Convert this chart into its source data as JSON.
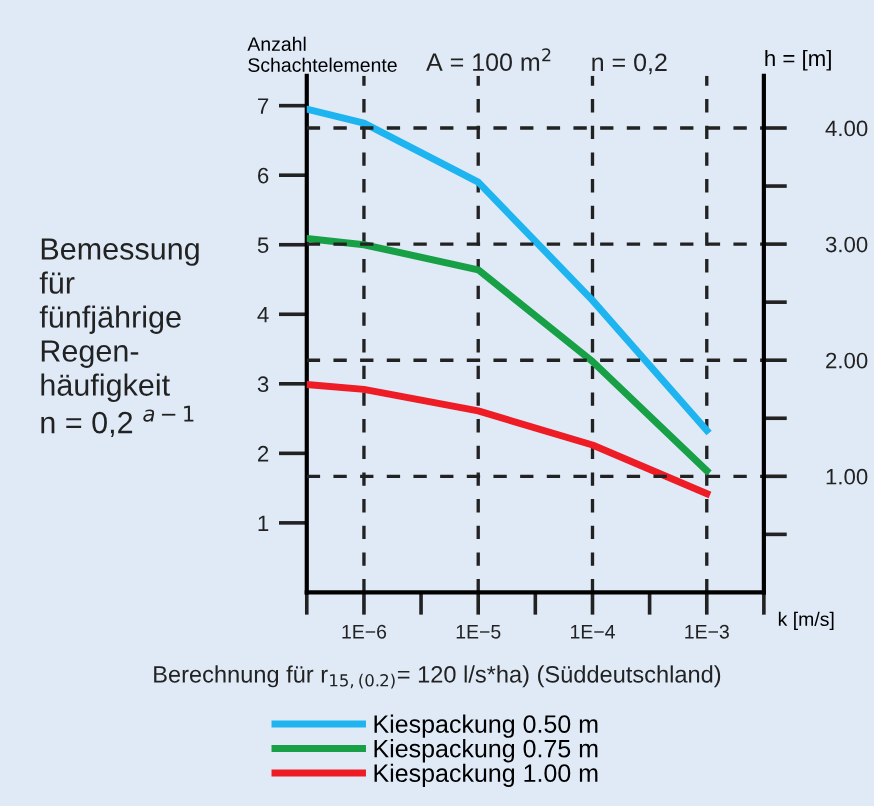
{
  "chart_data": {
    "type": "line",
    "ylabel": "Anzahl\nSchachtelemente",
    "y2label": "h = [m]",
    "xlabel": "k [m/s]",
    "annotations": [
      "A = 100 m$^{2}$",
      "n = 0,2",
      "Bemessung\nfür\nfünfjährige\nRegen-\nhäufigkeit\nn = 0,2 $^{a−1}$",
      "Berechnung für r$_{15,(0.2)}$= 120 l/s*ha) (Süddeutschland)"
    ],
    "x": [
      3.16e-07,
      1e-06,
      1e-05,
      0.0001,
      0.001
    ],
    "series": [
      {
        "name": "Kiespackung 0.50 m",
        "color": "#1eb4f0",
        "values": [
          6.95,
          6.75,
          5.9,
          4.2,
          2.33
        ]
      },
      {
        "name": "Kiespackung 0.75 m",
        "color": "#17a046",
        "values": [
          5.09,
          5.0,
          4.64,
          3.32,
          1.75
        ]
      },
      {
        "name": "Kiespackung 1.00 m",
        "color": "#ee1c25",
        "values": [
          2.99,
          2.92,
          2.61,
          2.12,
          1.42
        ]
      }
    ],
    "log": "x",
    "xlim": [
      3.16e-07,
      0.00316
    ],
    "xticks": [
      {
        "value": 3.16e-07,
        "label": null
      },
      {
        "value": 1e-06,
        "label": "1E−6"
      },
      {
        "value": 3.16e-06,
        "label": null
      },
      {
        "value": 1e-05,
        "label": "1E−5"
      },
      {
        "value": 3.16e-05,
        "label": null
      },
      {
        "value": 0.0001,
        "label": "1E−4"
      },
      {
        "value": 0.000316,
        "label": null
      },
      {
        "value": 0.001,
        "label": "1E−3"
      },
      {
        "value": 0.00316,
        "label": null
      }
    ],
    "ylim": [
      0,
      7.43
    ],
    "yticks": [
      1,
      2,
      3,
      4,
      5,
      6,
      7
    ],
    "y2lim": [
      0,
      4.45
    ],
    "y2ticks": [
      {
        "value": 0.5,
        "label": null
      },
      {
        "value": 1,
        "label": "1.00"
      },
      {
        "value": 1.5,
        "label": null
      },
      {
        "value": 2,
        "label": "2.00"
      },
      {
        "value": 2.5,
        "label": null
      },
      {
        "value": 3,
        "label": "3.00"
      },
      {
        "value": 3.5,
        "label": null
      },
      {
        "value": 4,
        "label": "4.00"
      }
    ],
    "grid": true,
    "legend": "bottom",
    "line_style": "solid",
    "marker": "none"
  }
}
